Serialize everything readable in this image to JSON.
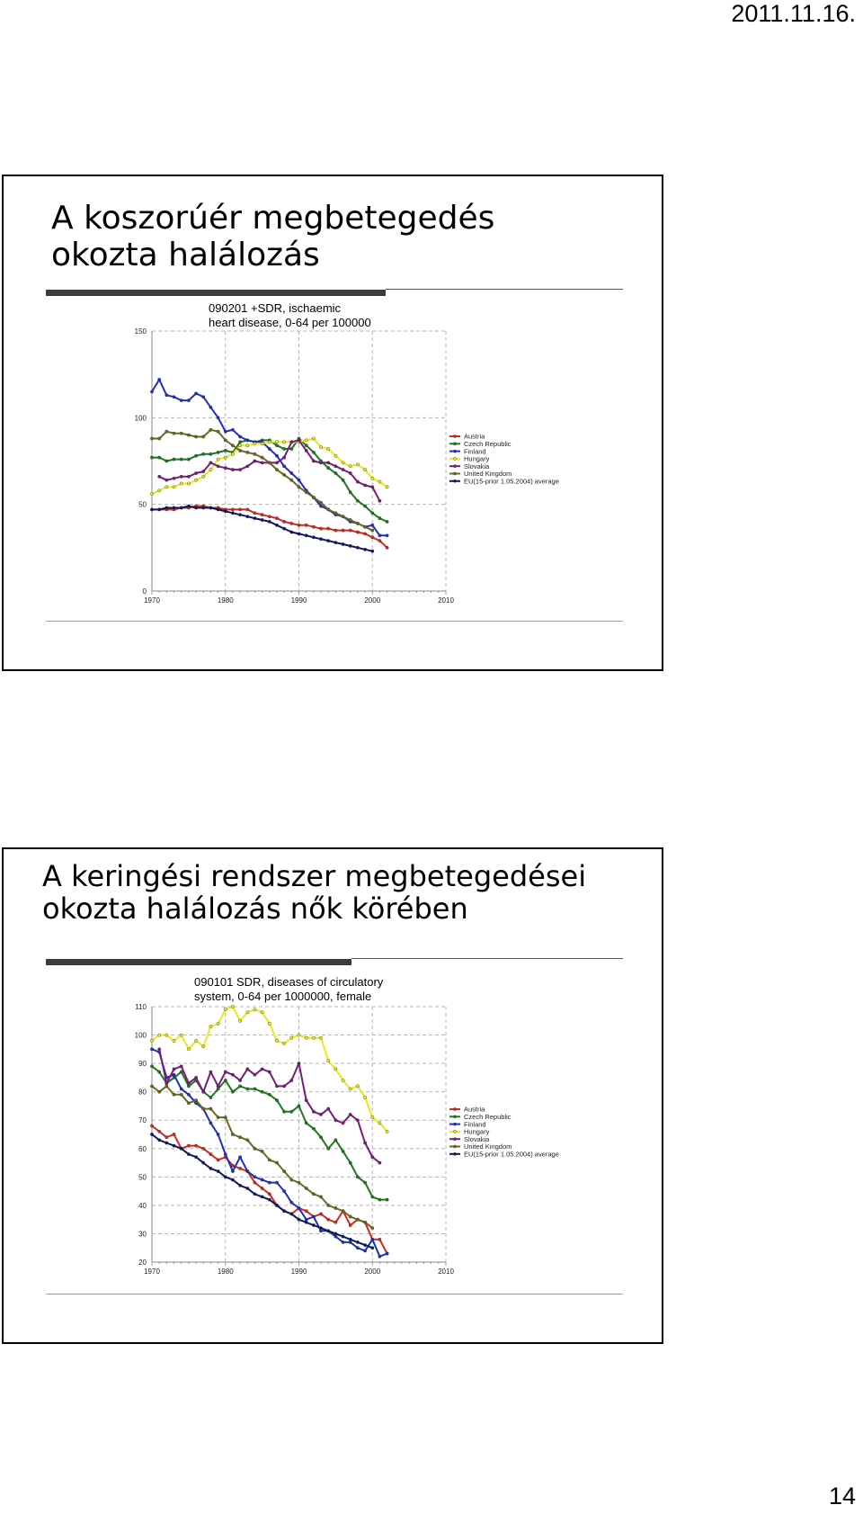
{
  "header": {
    "date": "2011.11.16."
  },
  "footer": {
    "page_number": "14"
  },
  "slides": [
    {
      "title": "A koszorúér megbetegedés okozta halálozás"
    },
    {
      "title": "A keringési rendszer megbetegedései okozta halálozás nők körében"
    }
  ],
  "chart_data": [
    {
      "type": "line",
      "title_lines": [
        "090201 +SDR, ischaemic",
        "heart disease, 0-64 per 100000"
      ],
      "xlabel": "",
      "ylabel": "",
      "xlim": [
        1970,
        2010
      ],
      "ylim": [
        0,
        150
      ],
      "xticks": [
        1970,
        1980,
        1990,
        2000,
        2010
      ],
      "yticks": [
        0,
        50,
        100,
        150
      ],
      "grid": true,
      "legend": "right",
      "series": [
        {
          "name": "Austria",
          "color": "#d42a1f",
          "x": [
            1970,
            1971,
            1972,
            1973,
            1974,
            1975,
            1976,
            1977,
            1978,
            1979,
            1980,
            1981,
            1982,
            1983,
            1984,
            1985,
            1986,
            1987,
            1988,
            1989,
            1990,
            1991,
            1992,
            1993,
            1994,
            1995,
            1996,
            1997,
            1998,
            1999,
            2000,
            2001,
            2002
          ],
          "y": [
            47,
            47,
            47,
            47,
            48,
            48,
            49,
            49,
            48,
            48,
            47,
            47,
            47,
            47,
            45,
            44,
            43,
            42,
            40,
            39,
            38,
            38,
            37,
            36,
            36,
            35,
            35,
            35,
            34,
            33,
            31,
            29,
            25
          ]
        },
        {
          "name": "Czech Republic",
          "color": "#1e7a1e",
          "x": [
            1970,
            1971,
            1972,
            1973,
            1974,
            1975,
            1976,
            1977,
            1978,
            1979,
            1980,
            1981,
            1982,
            1983,
            1984,
            1985,
            1986,
            1987,
            1988,
            1989,
            1990,
            1991,
            1992,
            1993,
            1994,
            1995,
            1996,
            1997,
            1998,
            1999,
            2000,
            2001,
            2002
          ],
          "y": [
            77,
            77,
            75,
            76,
            76,
            76,
            78,
            79,
            79,
            80,
            81,
            80,
            86,
            87,
            86,
            87,
            87,
            84,
            82,
            82,
            88,
            84,
            80,
            75,
            71,
            68,
            64,
            57,
            52,
            49,
            45,
            42,
            40
          ]
        },
        {
          "name": "Finland",
          "color": "#1c2fc4",
          "x": [
            1970,
            1971,
            1972,
            1973,
            1974,
            1975,
            1976,
            1977,
            1978,
            1979,
            1980,
            1981,
            1982,
            1983,
            1984,
            1985,
            1986,
            1987,
            1988,
            1989,
            1990,
            1991,
            1992,
            1993,
            1994,
            1995,
            1996,
            1997,
            1998,
            1999,
            2000,
            2001,
            2002
          ],
          "y": [
            115,
            122,
            113,
            112,
            110,
            110,
            114,
            112,
            106,
            100,
            92,
            93,
            89,
            87,
            86,
            86,
            82,
            78,
            72,
            68,
            64,
            58,
            54,
            49,
            47,
            44,
            43,
            40,
            39,
            37,
            38,
            32,
            32
          ]
        },
        {
          "name": "Hungary",
          "color": "#e8ea1a",
          "x": [
            1970,
            1971,
            1972,
            1973,
            1974,
            1975,
            1976,
            1977,
            1978,
            1979,
            1980,
            1981,
            1982,
            1983,
            1984,
            1985,
            1986,
            1987,
            1988,
            1989,
            1990,
            1991,
            1992,
            1993,
            1994,
            1995,
            1996,
            1997,
            1998,
            1999,
            2000,
            2001,
            2002
          ],
          "y": [
            56,
            58,
            60,
            60,
            62,
            62,
            64,
            66,
            70,
            76,
            77,
            79,
            84,
            84,
            85,
            85,
            86,
            86,
            86,
            86,
            86,
            87,
            88,
            83,
            82,
            78,
            74,
            72,
            73,
            70,
            65,
            63,
            60
          ]
        },
        {
          "name": "Slovakia",
          "color": "#7a1a7a",
          "x": [
            1971,
            1972,
            1973,
            1974,
            1975,
            1976,
            1977,
            1978,
            1979,
            1980,
            1981,
            1982,
            1983,
            1984,
            1985,
            1986,
            1987,
            1988,
            1989,
            1990,
            1991,
            1992,
            1993,
            1994,
            1995,
            1996,
            1997,
            1998,
            1999,
            2000,
            2001
          ],
          "y": [
            66,
            64,
            65,
            66,
            66,
            68,
            69,
            74,
            72,
            71,
            70,
            70,
            72,
            75,
            74,
            74,
            74,
            77,
            86,
            87,
            81,
            75,
            74,
            74,
            72,
            70,
            68,
            63,
            61,
            60,
            52
          ]
        },
        {
          "name": "United Kingdom",
          "color": "#6b6b1f",
          "x": [
            1970,
            1971,
            1972,
            1973,
            1974,
            1975,
            1976,
            1977,
            1978,
            1979,
            1980,
            1981,
            1982,
            1983,
            1984,
            1985,
            1986,
            1987,
            1988,
            1989,
            1990,
            1991,
            1992,
            1993,
            1994,
            1995,
            1996,
            1997,
            1998,
            1999,
            2000
          ],
          "y": [
            88,
            88,
            92,
            91,
            91,
            90,
            89,
            89,
            93,
            92,
            87,
            84,
            81,
            80,
            79,
            77,
            74,
            70,
            67,
            64,
            60,
            57,
            54,
            51,
            47,
            45,
            43,
            41,
            39,
            37,
            35
          ]
        },
        {
          "name": "EU(15-prior 1.05.2004) average",
          "color": "#0c1560",
          "x": [
            1970,
            1971,
            1972,
            1973,
            1974,
            1975,
            1976,
            1977,
            1978,
            1979,
            1980,
            1981,
            1982,
            1983,
            1984,
            1985,
            1986,
            1987,
            1988,
            1989,
            1990,
            1991,
            1992,
            1993,
            1994,
            1995,
            1996,
            1997,
            1998,
            1999,
            2000
          ],
          "y": [
            47,
            47,
            48,
            48,
            48,
            49,
            48,
            48,
            48,
            47,
            46,
            45,
            44,
            43,
            42,
            41,
            40,
            38,
            36,
            34,
            33,
            32,
            31,
            30,
            29,
            28,
            27,
            26,
            25,
            24,
            23
          ]
        }
      ]
    },
    {
      "type": "line",
      "title_lines": [
        "090101 SDR, diseases of circulatory",
        "system, 0-64 per 1000000, female"
      ],
      "xlabel": "",
      "ylabel": "",
      "xlim": [
        1970,
        2010
      ],
      "ylim": [
        20,
        110
      ],
      "xticks": [
        1970,
        1980,
        1990,
        2000,
        2010
      ],
      "yticks": [
        20,
        30,
        40,
        50,
        60,
        70,
        80,
        90,
        100,
        110
      ],
      "grid": true,
      "legend": "right",
      "series": [
        {
          "name": "Austria",
          "color": "#d42a1f",
          "x": [
            1970,
            1971,
            1972,
            1973,
            1974,
            1975,
            1976,
            1977,
            1978,
            1979,
            1980,
            1981,
            1982,
            1983,
            1984,
            1985,
            1986,
            1987,
            1988,
            1989,
            1990,
            1991,
            1992,
            1993,
            1994,
            1995,
            1996,
            1997,
            1998,
            1999,
            2000,
            2001,
            2002
          ],
          "y": [
            68,
            66,
            64,
            65,
            60,
            61,
            61,
            60,
            58,
            56,
            57,
            54,
            53,
            52,
            48,
            46,
            44,
            40,
            38,
            37,
            39,
            38,
            36,
            37,
            35,
            34,
            38,
            33,
            35,
            34,
            28,
            28,
            23
          ]
        },
        {
          "name": "Czech Republic",
          "color": "#1e7a1e",
          "x": [
            1970,
            1971,
            1972,
            1973,
            1974,
            1975,
            1976,
            1977,
            1978,
            1979,
            1980,
            1981,
            1982,
            1983,
            1984,
            1985,
            1986,
            1987,
            1988,
            1989,
            1990,
            1991,
            1992,
            1993,
            1994,
            1995,
            1996,
            1997,
            1998,
            1999,
            2000,
            2001,
            2002
          ],
          "y": [
            89,
            87,
            83,
            85,
            87,
            82,
            84,
            80,
            78,
            81,
            84,
            80,
            82,
            81,
            81,
            80,
            79,
            77,
            73,
            73,
            75,
            69,
            67,
            64,
            60,
            63,
            59,
            55,
            50,
            48,
            43,
            42,
            42
          ]
        },
        {
          "name": "Finland",
          "color": "#1c2fc4",
          "x": [
            1970,
            1971,
            1972,
            1973,
            1974,
            1975,
            1976,
            1977,
            1978,
            1979,
            1980,
            1981,
            1982,
            1983,
            1984,
            1985,
            1986,
            1987,
            1988,
            1989,
            1990,
            1991,
            1992,
            1993,
            1994,
            1995,
            1996,
            1997,
            1998,
            1999,
            2000,
            2001,
            2002
          ],
          "y": [
            95,
            94,
            85,
            86,
            81,
            79,
            76,
            74,
            69,
            65,
            58,
            52,
            57,
            52,
            50,
            49,
            48,
            48,
            45,
            41,
            39,
            35,
            36,
            31,
            31,
            29,
            27,
            27,
            25,
            24,
            28,
            22,
            23
          ]
        },
        {
          "name": "Hungary",
          "color": "#e8ea1a",
          "x": [
            1970,
            1971,
            1972,
            1973,
            1974,
            1975,
            1976,
            1977,
            1978,
            1979,
            1980,
            1981,
            1982,
            1983,
            1984,
            1985,
            1986,
            1987,
            1988,
            1989,
            1990,
            1991,
            1992,
            1993,
            1994,
            1995,
            1996,
            1997,
            1998,
            1999,
            2000,
            2001,
            2002
          ],
          "y": [
            98,
            100,
            100,
            98,
            100,
            95,
            98,
            96,
            103,
            104,
            109,
            110,
            105,
            108,
            109,
            108,
            104,
            98,
            97,
            99,
            100,
            99,
            99,
            99,
            91,
            88,
            84,
            81,
            82,
            78,
            71,
            69,
            66
          ]
        },
        {
          "name": "Slovakia",
          "color": "#7a1a7a",
          "x": [
            1971,
            1972,
            1973,
            1974,
            1975,
            1976,
            1977,
            1978,
            1979,
            1980,
            1981,
            1982,
            1983,
            1984,
            1985,
            1986,
            1987,
            1988,
            1989,
            1990,
            1991,
            1992,
            1993,
            1994,
            1995,
            1996,
            1997,
            1998,
            1999,
            2000,
            2001
          ],
          "y": [
            95,
            83,
            88,
            89,
            83,
            85,
            80,
            87,
            82,
            87,
            86,
            84,
            88,
            86,
            88,
            87,
            82,
            82,
            84,
            90,
            77,
            73,
            72,
            74,
            70,
            69,
            72,
            70,
            62,
            57,
            55
          ]
        },
        {
          "name": "United Kingdom",
          "color": "#6b6b1f",
          "x": [
            1970,
            1971,
            1972,
            1973,
            1974,
            1975,
            1976,
            1977,
            1978,
            1979,
            1980,
            1981,
            1982,
            1983,
            1984,
            1985,
            1986,
            1987,
            1988,
            1989,
            1990,
            1991,
            1992,
            1993,
            1994,
            1995,
            1996,
            1997,
            1998,
            1999,
            2000
          ],
          "y": [
            82,
            80,
            82,
            79,
            79,
            76,
            77,
            74,
            74,
            71,
            71,
            65,
            64,
            63,
            60,
            59,
            56,
            55,
            52,
            49,
            48,
            46,
            44,
            43,
            40,
            39,
            38,
            36,
            35,
            34,
            32
          ]
        },
        {
          "name": "EU(15-prior 1.05.2004) average",
          "color": "#0c1560",
          "x": [
            1970,
            1971,
            1972,
            1973,
            1974,
            1975,
            1976,
            1977,
            1978,
            1979,
            1980,
            1981,
            1982,
            1983,
            1984,
            1985,
            1986,
            1987,
            1988,
            1989,
            1990,
            1991,
            1992,
            1993,
            1994,
            1995,
            1996,
            1997,
            1998,
            1999,
            2000
          ],
          "y": [
            65,
            63,
            62,
            61,
            60,
            58,
            57,
            55,
            53,
            52,
            50,
            49,
            47,
            46,
            44,
            43,
            42,
            40,
            38,
            37,
            35,
            34,
            33,
            32,
            31,
            30,
            29,
            28,
            27,
            26,
            25
          ]
        }
      ]
    }
  ]
}
